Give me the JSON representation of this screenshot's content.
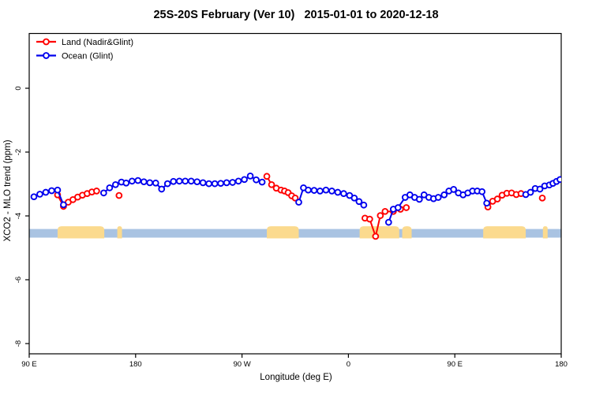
{
  "chart_data": {
    "type": "line",
    "title": "25S-20S February (Ver 10)   2015-01-01 to 2020-12-18",
    "xlabel": "Longitude (deg E)",
    "ylabel": "XCO2 - MLO trend (ppm)",
    "xlim": [
      90,
      540
    ],
    "ylim": [
      -8.3,
      1.7
    ],
    "grid": "off",
    "legend_position": "top-left",
    "x_ticks": [
      {
        "lon": 90,
        "label": "90 E"
      },
      {
        "lon": 180,
        "label": "180"
      },
      {
        "lon": 270,
        "label": "90 W"
      },
      {
        "lon": 360,
        "label": "0"
      },
      {
        "lon": 450,
        "label": "90 E"
      },
      {
        "lon": 540,
        "label": "180"
      }
    ],
    "y_ticks": [
      {
        "value": 0,
        "label": "0"
      },
      {
        "value": -2,
        "label": "-2"
      },
      {
        "value": -4,
        "label": "-4"
      },
      {
        "value": -6,
        "label": "-6"
      },
      {
        "value": -8,
        "label": "-8"
      }
    ],
    "series": [
      {
        "name": "Land (Nadir&Glint)",
        "color": "#ff0000",
        "segments": [
          [
            [
              114,
              -3.34
            ],
            [
              119,
              -3.7
            ],
            [
              123,
              -3.57
            ],
            [
              127,
              -3.49
            ],
            [
              131,
              -3.41
            ],
            [
              135,
              -3.35
            ],
            [
              139,
              -3.3
            ],
            [
              143,
              -3.25
            ],
            [
              147,
              -3.22
            ]
          ],
          [
            [
              166,
              -3.36
            ]
          ],
          [
            [
              291,
              -2.76
            ],
            [
              295,
              -3.02
            ],
            [
              299,
              -3.13
            ],
            [
              303,
              -3.19
            ],
            [
              306,
              -3.22
            ],
            [
              309,
              -3.27
            ],
            [
              312,
              -3.37
            ],
            [
              315,
              -3.44
            ]
          ],
          [
            [
              374,
              -4.07
            ],
            [
              378,
              -4.1
            ],
            [
              383,
              -4.64
            ],
            [
              387,
              -3.99
            ],
            [
              391,
              -3.86
            ],
            [
              398,
              -3.86
            ],
            [
              404,
              -3.79
            ],
            [
              409,
              -3.74
            ]
          ],
          [
            [
              478,
              -3.72
            ],
            [
              482,
              -3.54
            ],
            [
              486,
              -3.47
            ],
            [
              490,
              -3.35
            ],
            [
              494,
              -3.29
            ],
            [
              498,
              -3.28
            ],
            [
              502,
              -3.33
            ],
            [
              506,
              -3.3
            ]
          ],
          [
            [
              524,
              -3.44
            ]
          ]
        ]
      },
      {
        "name": "Ocean (Glint)",
        "color": "#0000ee",
        "segments": [
          [
            [
              94,
              -3.4
            ],
            [
              99,
              -3.32
            ],
            [
              104,
              -3.26
            ],
            [
              109,
              -3.21
            ],
            [
              114,
              -3.19
            ],
            [
              119,
              -3.65
            ]
          ],
          [
            [
              153,
              -3.28
            ],
            [
              158,
              -3.12
            ],
            [
              163,
              -3.02
            ],
            [
              168,
              -2.94
            ],
            [
              172,
              -2.97
            ],
            [
              177,
              -2.91
            ],
            [
              182,
              -2.89
            ],
            [
              187,
              -2.93
            ],
            [
              192,
              -2.96
            ],
            [
              197,
              -2.97
            ],
            [
              202,
              -3.16
            ],
            [
              207,
              -2.99
            ],
            [
              212,
              -2.92
            ],
            [
              217,
              -2.91
            ],
            [
              222,
              -2.91
            ],
            [
              227,
              -2.91
            ],
            [
              232,
              -2.93
            ],
            [
              237,
              -2.96
            ],
            [
              242,
              -2.99
            ],
            [
              247,
              -2.99
            ],
            [
              252,
              -2.98
            ],
            [
              257,
              -2.96
            ],
            [
              262,
              -2.95
            ],
            [
              267,
              -2.91
            ],
            [
              272,
              -2.86
            ],
            [
              277,
              -2.75
            ],
            [
              282,
              -2.87
            ],
            [
              287,
              -2.94
            ]
          ],
          [
            [
              318,
              -3.57
            ],
            [
              322,
              -3.12
            ],
            [
              326,
              -3.19
            ],
            [
              331,
              -3.2
            ],
            [
              336,
              -3.22
            ],
            [
              341,
              -3.19
            ],
            [
              346,
              -3.22
            ],
            [
              351,
              -3.26
            ],
            [
              356,
              -3.3
            ],
            [
              361,
              -3.36
            ],
            [
              365,
              -3.44
            ],
            [
              369,
              -3.55
            ],
            [
              373,
              -3.66
            ]
          ],
          [
            [
              394,
              -4.2
            ],
            [
              398,
              -3.79
            ],
            [
              402,
              -3.74
            ],
            [
              408,
              -3.42
            ],
            [
              412,
              -3.34
            ],
            [
              416,
              -3.42
            ],
            [
              420,
              -3.48
            ],
            [
              424,
              -3.34
            ],
            [
              428,
              -3.42
            ],
            [
              432,
              -3.46
            ],
            [
              436,
              -3.42
            ],
            [
              441,
              -3.34
            ],
            [
              445,
              -3.22
            ],
            [
              449,
              -3.17
            ],
            [
              453,
              -3.28
            ],
            [
              457,
              -3.34
            ],
            [
              461,
              -3.28
            ],
            [
              465,
              -3.22
            ],
            [
              469,
              -3.22
            ],
            [
              473,
              -3.24
            ],
            [
              477,
              -3.6
            ]
          ],
          [
            [
              510,
              -3.33
            ],
            [
              514,
              -3.26
            ],
            [
              518,
              -3.14
            ],
            [
              522,
              -3.16
            ],
            [
              526,
              -3.06
            ],
            [
              530,
              -3.03
            ],
            [
              533,
              -2.98
            ],
            [
              536,
              -2.92
            ],
            [
              539,
              -2.86
            ]
          ]
        ]
      }
    ],
    "land_ocean_strip": {
      "description": "land/ocean map band for 25S-20S latitude strip",
      "ocean_color": "#a9c3e2",
      "land_color": "#fbda8e",
      "y_top": -4.41,
      "y_bottom": -4.68,
      "land_patches_lon": [
        [
          114,
          153.5
        ],
        [
          164.5,
          168.5
        ],
        [
          291,
          318
        ],
        [
          369.5,
          403
        ],
        [
          405.5,
          413.5
        ],
        [
          474,
          510
        ],
        [
          524.5,
          528.5
        ]
      ]
    }
  }
}
